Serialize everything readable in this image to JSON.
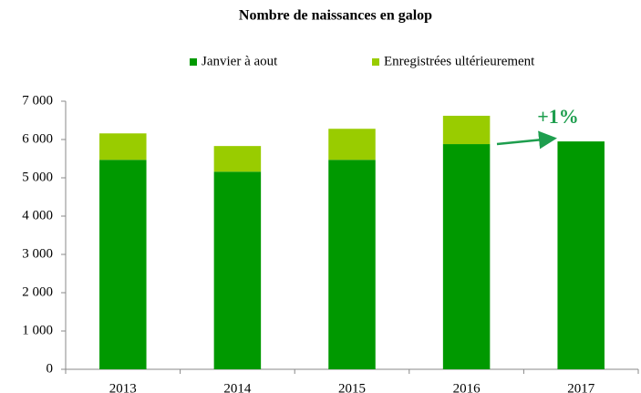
{
  "chart_data": {
    "type": "stacked_bar",
    "title": "Nombre de naissances en galop",
    "categories": [
      "2013",
      "2014",
      "2015",
      "2016",
      "2017"
    ],
    "series": [
      {
        "name": "Janvier à aout",
        "color": "#009900",
        "values": [
          5470,
          5160,
          5470,
          5880,
          5950
        ]
      },
      {
        "name": "Enregistrées ultérieurement",
        "color": "#99cc00",
        "values": [
          690,
          670,
          810,
          740,
          null
        ]
      }
    ],
    "ylim": [
      0,
      7000
    ],
    "yticks": [
      0,
      {
        "value": 1000,
        "label": "1 000"
      },
      {
        "value": 2000,
        "label": "2 000"
      },
      {
        "value": 3000,
        "label": "3 000"
      },
      {
        "value": 4000,
        "label": "4 000"
      },
      {
        "value": 5000,
        "label": "5 000"
      },
      {
        "value": 6000,
        "label": "6 000"
      },
      {
        "value": 7000,
        "label": "7 000"
      }
    ],
    "annotation": "+1%"
  }
}
